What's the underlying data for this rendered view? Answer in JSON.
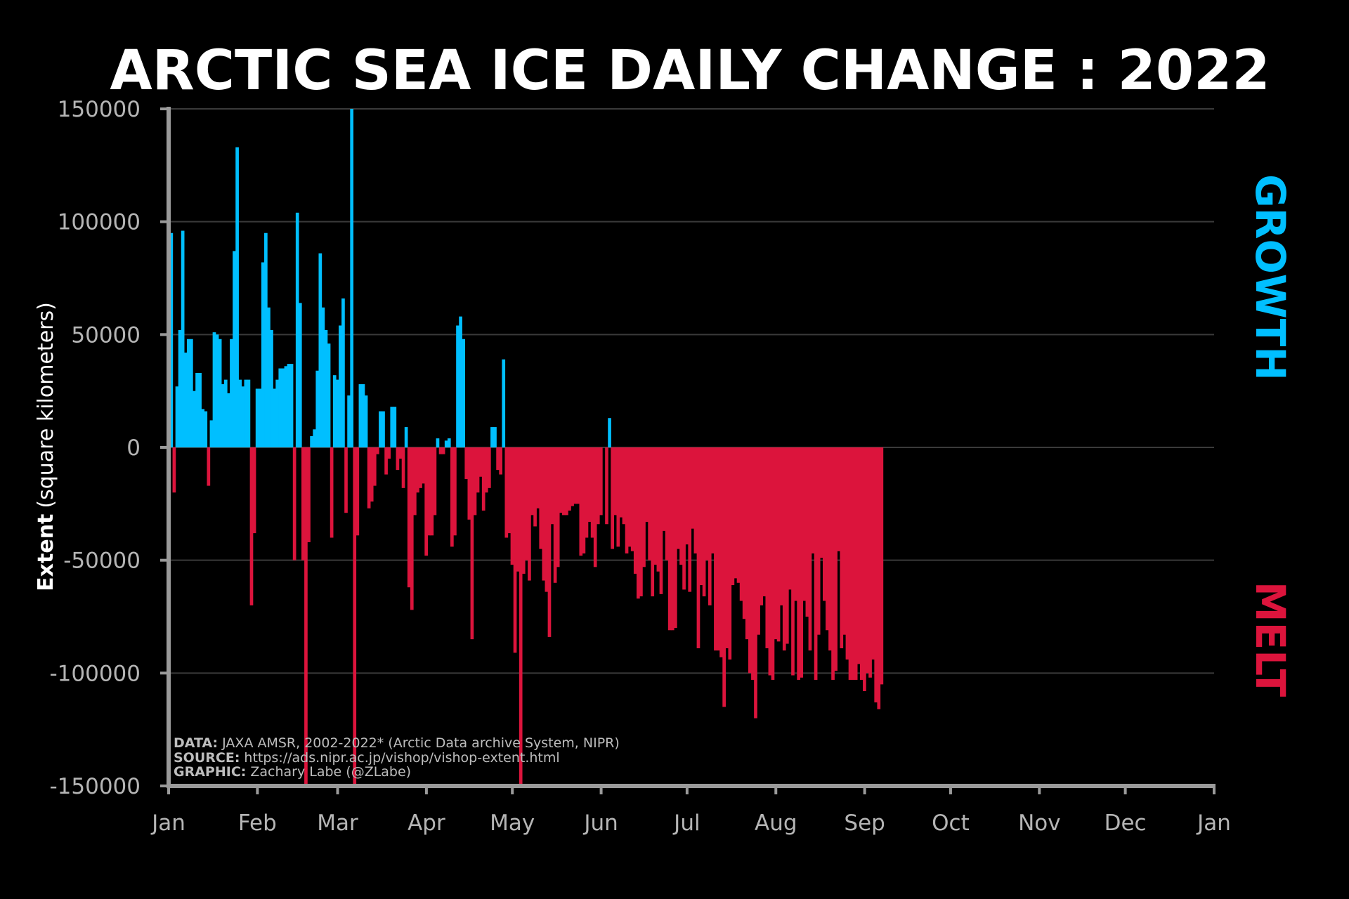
{
  "chart_data": {
    "type": "bar",
    "title": "ARCTIC SEA ICE DAILY CHANGE : 2022",
    "ylabel_bold": "Extent",
    "ylabel_rest": "(square kilometers)",
    "xlabel": "",
    "ylim": [
      -150000,
      150000
    ],
    "yticks": [
      150000,
      100000,
      50000,
      0,
      -50000,
      -100000,
      -150000
    ],
    "xlim_day": [
      0,
      365
    ],
    "month_ticks": [
      {
        "label": "Jan",
        "day": 0
      },
      {
        "label": "Feb",
        "day": 31
      },
      {
        "label": "Mar",
        "day": 59
      },
      {
        "label": "Apr",
        "day": 90
      },
      {
        "label": "May",
        "day": 120
      },
      {
        "label": "Jun",
        "day": 151
      },
      {
        "label": "Jul",
        "day": 181
      },
      {
        "label": "Aug",
        "day": 212
      },
      {
        "label": "Sep",
        "day": 243
      },
      {
        "label": "Oct",
        "day": 273
      },
      {
        "label": "Nov",
        "day": 304
      },
      {
        "label": "Dec",
        "day": 334
      },
      {
        "label": "Jan",
        "day": 365
      }
    ],
    "grid": true,
    "growth_label": "GROWTH",
    "melt_label": "MELT",
    "growth_color": "#00BFFF",
    "melt_color": "#DC143C",
    "series": [
      {
        "values": [
          95000,
          -20000,
          27000,
          52000,
          96000,
          42000,
          48000,
          48000,
          25000,
          33000,
          33000,
          17000,
          16000,
          -17000,
          12000,
          51000,
          50000,
          48000,
          28000,
          30000,
          24000,
          48000,
          87000,
          133000,
          30000,
          27000,
          30000,
          30000,
          -70000,
          -38000,
          26000,
          26000,
          82000,
          95000,
          62000,
          52000,
          26000,
          30000,
          35000,
          35000,
          36000,
          37000,
          37000,
          -50000,
          104000,
          64000,
          -50000,
          -150000,
          -42000,
          5000,
          8000,
          34000,
          86000,
          62000,
          52000,
          46000,
          -40000,
          32000,
          30000,
          54000,
          66000,
          -29000,
          23000,
          150000,
          -150000,
          -39000,
          28000,
          28000,
          23000,
          -27000,
          -24000,
          -17000,
          -3000,
          16000,
          16000,
          -12000,
          -5000,
          18000,
          18000,
          -10000,
          -5000,
          -18000,
          9000,
          -62000,
          -72000,
          -30000,
          -20000,
          -18000,
          -16000,
          -48000,
          -39000,
          -39000,
          -30000,
          4000,
          -3000,
          -3000,
          3000,
          4000,
          -44000,
          -39000,
          54000,
          58000,
          48000,
          -14000,
          -32000,
          -85000,
          -30000,
          -20000,
          -13000,
          -28000,
          -20000,
          -18000,
          9000,
          9000,
          -10000,
          -12000,
          39000,
          -40000,
          -38000,
          -52000,
          -91000,
          -55000,
          -150000,
          -56000,
          -50000,
          -59000,
          -30000,
          -35000,
          -27000,
          -45000,
          -59000,
          -64000,
          -84000,
          -34000,
          -60000,
          -53000,
          -29000,
          -30000,
          -30000,
          -28000,
          -26000,
          -25000,
          -25000,
          -48000,
          -47000,
          -40000,
          -33000,
          -40000,
          -53000,
          -34000,
          -30000,
          0,
          -34000,
          13000,
          -45000,
          -30000,
          -44000,
          -31000,
          -34000,
          -47000,
          -44000,
          -46000,
          -56000,
          -67000,
          -66000,
          -53000,
          -33000,
          -50000,
          -66000,
          -52000,
          -55000,
          -65000,
          -37000,
          -50000,
          -81000,
          -81000,
          -80000,
          -45000,
          -52000,
          -63000,
          -43000,
          -64000,
          -36000,
          -47000,
          -89000,
          -61000,
          -66000,
          -50000,
          -70000,
          -47000,
          -90000,
          -90000,
          -93000,
          -115000,
          -89000,
          -94000,
          -61000,
          -58000,
          -60000,
          -68000,
          -76000,
          -85000,
          -100000,
          -103000,
          -120000,
          -83000,
          -70000,
          -66000,
          -89000,
          -101000,
          -103000,
          -85000,
          -86000,
          -70000,
          -90000,
          -87000,
          -63000,
          -101000,
          -68000,
          -103000,
          -102000,
          -68000,
          -75000,
          -90000,
          -47000,
          -103000,
          -83000,
          -49000,
          -68000,
          -81000,
          -90000,
          -103000,
          -99000,
          -46000,
          -89000,
          -83000,
          -94000,
          -103000,
          -103000,
          -103000,
          -96000,
          -103000,
          -108000,
          -100000,
          -102000,
          -94000,
          -113000,
          -116000,
          -105000
        ]
      }
    ],
    "footer": [
      {
        "bold": "DATA:",
        "text": "JAXA AMSR, 2002-2022* (Arctic Data archive System, NIPR)"
      },
      {
        "bold": "SOURCE:",
        "text": "https://ads.nipr.ac.jp/vishop/vishop-extent.html"
      },
      {
        "bold": "GRAPHIC:",
        "text": "Zachary Labe (@ZLabe)"
      }
    ]
  }
}
